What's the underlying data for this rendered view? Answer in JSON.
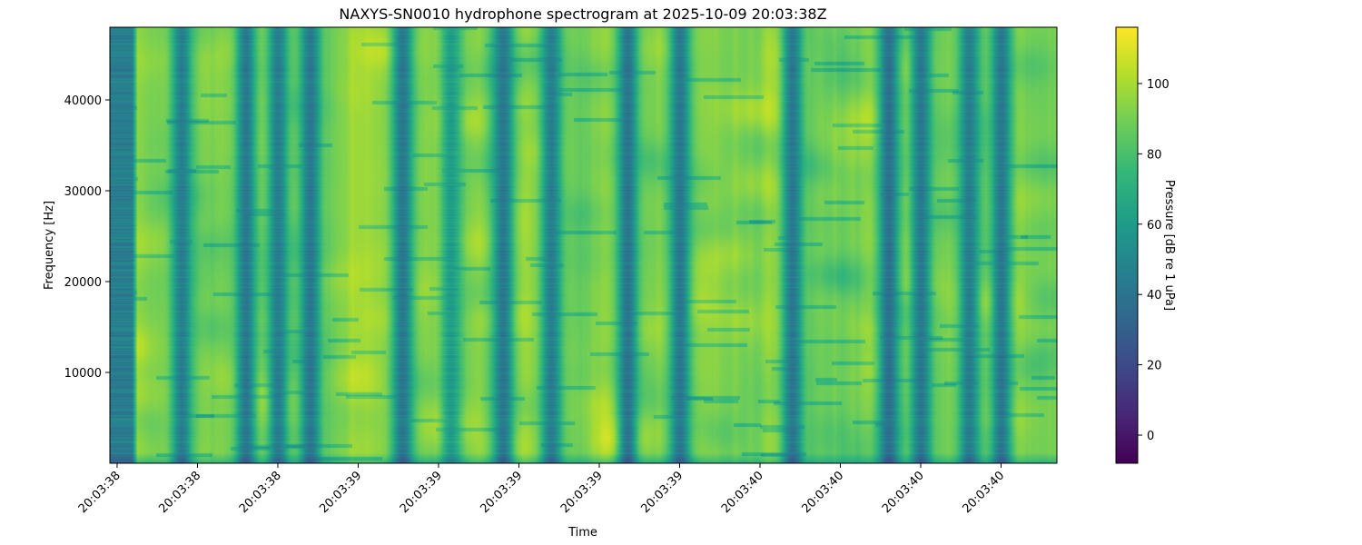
{
  "chart_data": {
    "type": "heatmap",
    "title": "NAXYS-SN0010 hydrophone spectrogram at 2025-10-09 20:03:38Z",
    "xlabel": "Time",
    "ylabel": "Frequency [Hz]",
    "colorbar_label": "Pressure [dB re 1 uPa]",
    "colormap": "viridis",
    "xlim_seconds_after_20_03": [
      38.382,
      40.739
    ],
    "xtick_seconds_after_20_03": [
      38.4,
      38.6,
      38.8,
      39.0,
      39.2,
      39.4,
      39.6,
      39.8,
      40.0,
      40.2,
      40.4,
      40.6
    ],
    "xtick_labels": [
      "20:03:38",
      "20:03:38",
      "20:03:38",
      "20:03:39",
      "20:03:39",
      "20:03:39",
      "20:03:39",
      "20:03:39",
      "20:03:40",
      "20:03:40",
      "20:03:40",
      "20:03:40"
    ],
    "ylim": [
      0,
      48000
    ],
    "yticks": [
      10000,
      20000,
      30000,
      40000
    ],
    "ytick_labels": [
      "10000",
      "20000",
      "30000",
      "40000"
    ],
    "clim": [
      -8,
      116
    ],
    "cticks": [
      0,
      20,
      40,
      60,
      80,
      100
    ],
    "ctick_labels": [
      "0",
      "20",
      "40",
      "60",
      "80",
      "100"
    ],
    "background_level_db": 100,
    "low_level_segment_seconds": [
      38.382,
      38.45
    ],
    "low_level_segment_db": 45,
    "dark_bands": [
      {
        "t": 38.56,
        "db": 45
      },
      {
        "t": 38.72,
        "db": 42
      },
      {
        "t": 38.8,
        "db": 45
      },
      {
        "t": 38.88,
        "db": 42
      },
      {
        "t": 39.11,
        "db": 42
      },
      {
        "t": 39.23,
        "db": 60
      },
      {
        "t": 39.36,
        "db": 42
      },
      {
        "t": 39.48,
        "db": 45
      },
      {
        "t": 39.67,
        "db": 40
      },
      {
        "t": 39.8,
        "db": 42
      },
      {
        "t": 40.08,
        "db": 42
      },
      {
        "t": 40.32,
        "db": 38
      },
      {
        "t": 40.4,
        "db": 42
      },
      {
        "t": 40.52,
        "db": 45
      },
      {
        "t": 40.6,
        "db": 42
      }
    ]
  }
}
